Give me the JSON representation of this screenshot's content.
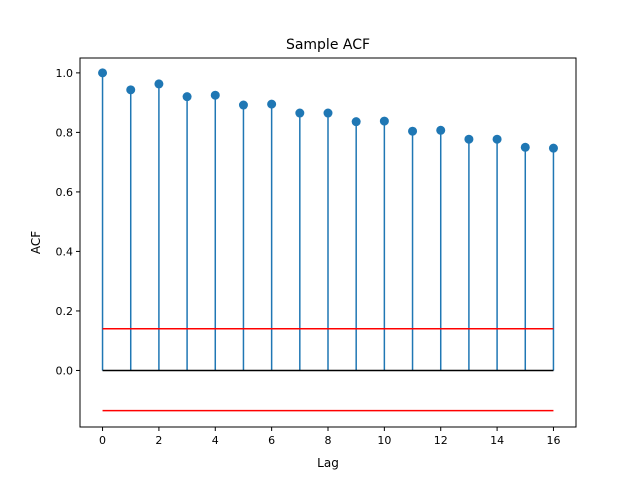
{
  "chart_data": {
    "type": "stem",
    "title": "Sample ACF",
    "xlabel": "Lag",
    "ylabel": "ACF",
    "xlim": [
      -0.8,
      16.8
    ],
    "ylim": [
      -0.19,
      1.05
    ],
    "xticks": [
      0,
      2,
      4,
      6,
      8,
      10,
      12,
      14,
      16
    ],
    "xtick_labels": [
      "0",
      "2",
      "4",
      "6",
      "8",
      "10",
      "12",
      "14",
      "16"
    ],
    "yticks": [
      0.0,
      0.2,
      0.4,
      0.6,
      0.8,
      1.0
    ],
    "ytick_labels": [
      "0.0",
      "0.2",
      "0.4",
      "0.6",
      "0.8",
      "1.0"
    ],
    "grid": false,
    "legend": "none",
    "x": [
      0,
      1,
      2,
      3,
      4,
      5,
      6,
      7,
      8,
      9,
      10,
      11,
      12,
      13,
      14,
      15,
      16
    ],
    "values": [
      1.0,
      0.943,
      0.963,
      0.92,
      0.925,
      0.892,
      0.895,
      0.865,
      0.865,
      0.836,
      0.838,
      0.804,
      0.807,
      0.777,
      0.777,
      0.75,
      0.747
    ],
    "baseline": 0.0,
    "confidence_bounds": [
      0.14,
      -0.135
    ],
    "colors": {
      "stem": "#1f77b4",
      "marker": "#1f77b4",
      "baseline": "#000000",
      "bounds": "#ff0000"
    }
  }
}
